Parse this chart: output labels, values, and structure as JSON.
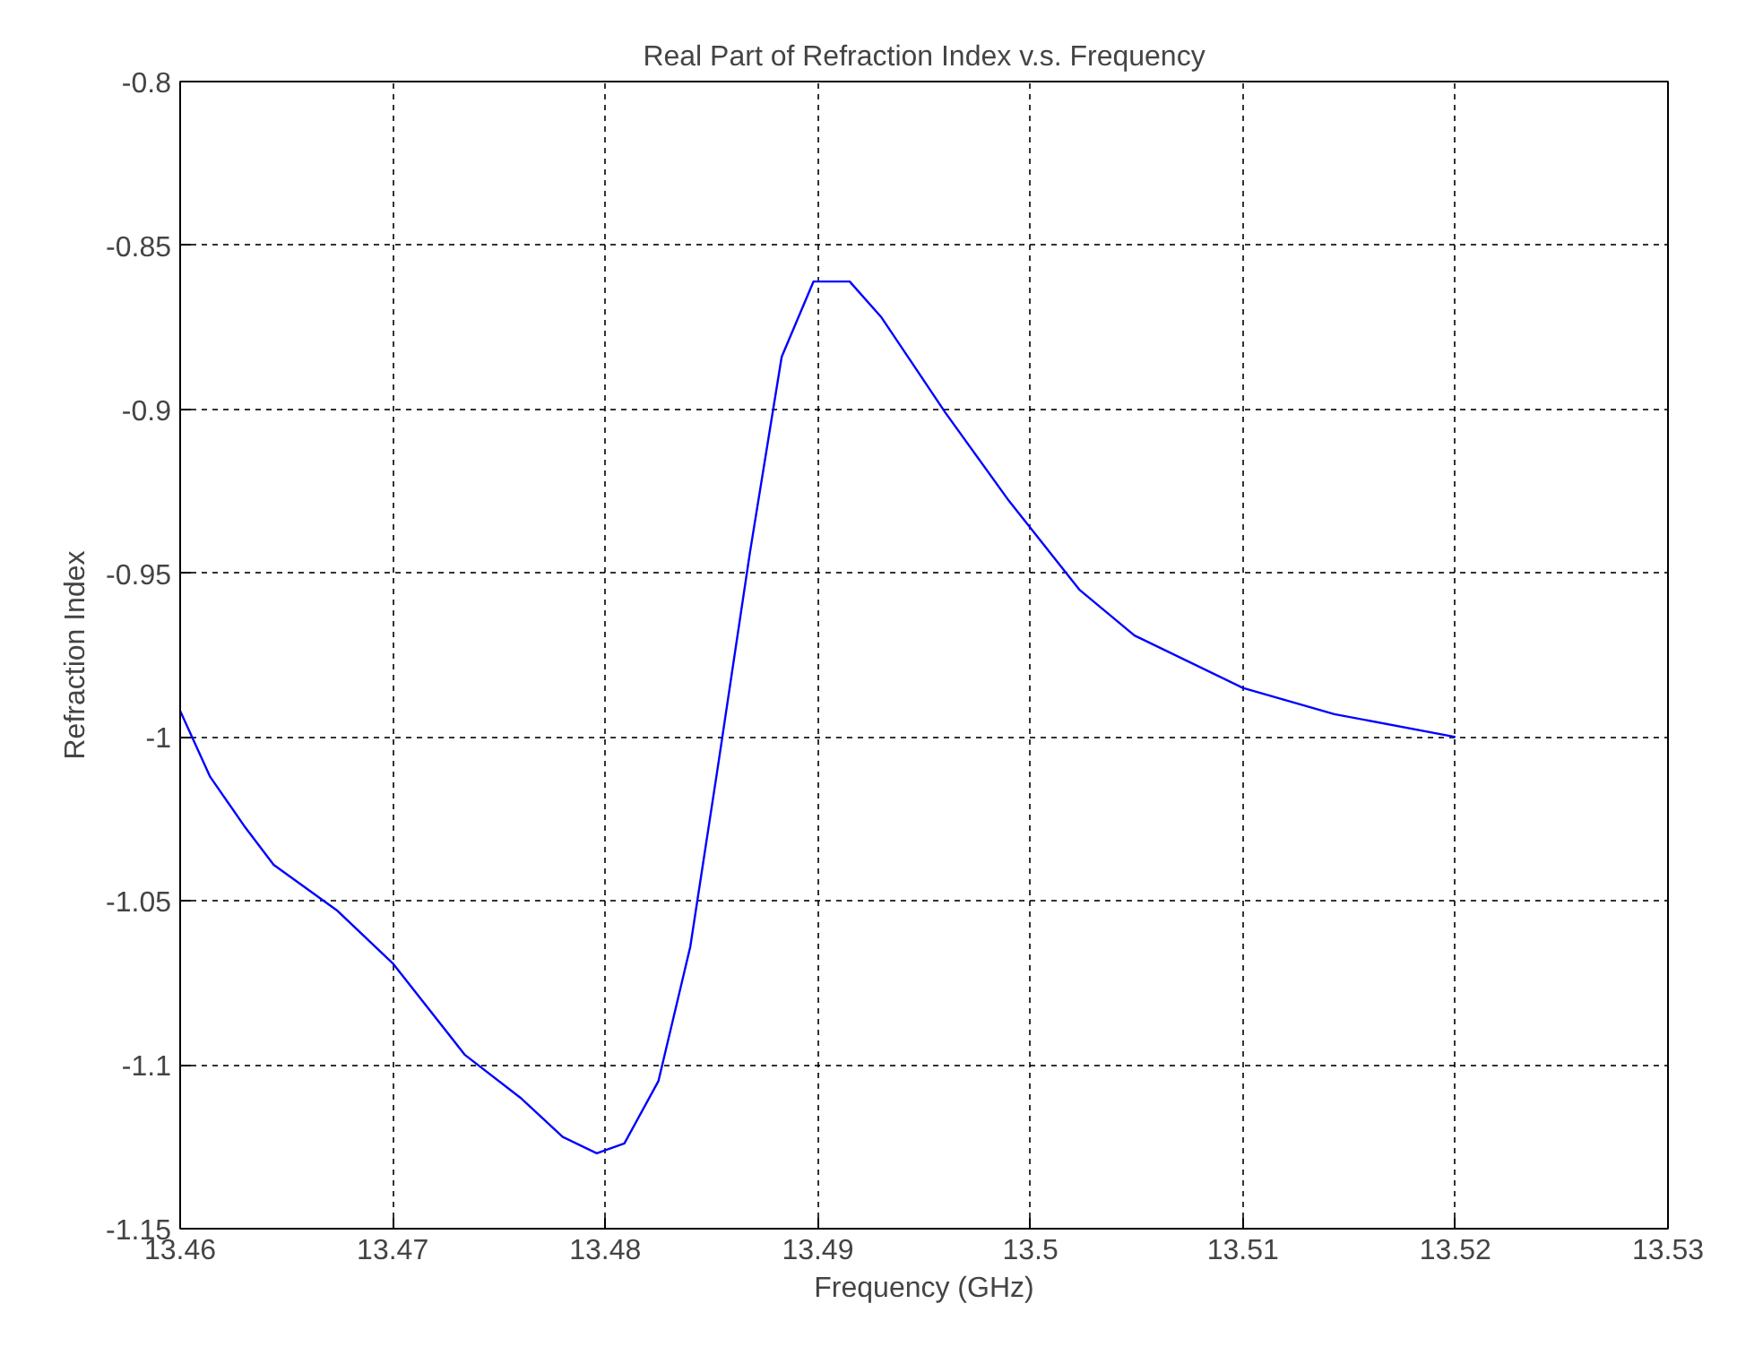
{
  "chart_data": {
    "type": "line",
    "title": "Real Part of Refraction Index v.s. Frequency",
    "xlabel": "Frequency (GHz)",
    "ylabel": "Refraction Index",
    "x": [
      13.46,
      13.4614,
      13.463,
      13.4644,
      13.4674,
      13.47,
      13.4734,
      13.476,
      13.478,
      13.4796,
      13.4809,
      13.4825,
      13.484,
      13.4853,
      13.4868,
      13.4883,
      13.4898,
      13.4915,
      13.493,
      13.496,
      13.499,
      13.5023,
      13.5049,
      13.51,
      13.5143,
      13.52
    ],
    "series": [
      {
        "color": "#0000ff",
        "values": [
          -0.992,
          -1.012,
          -1.027,
          -1.039,
          -1.053,
          -1.069,
          -1.097,
          -1.11,
          -1.122,
          -1.127,
          -1.124,
          -1.105,
          -1.064,
          -1.009,
          -0.944,
          -0.884,
          -0.861,
          -0.861,
          -0.872,
          -0.901,
          -0.928,
          -0.955,
          -0.969,
          -0.985,
          -0.993,
          -1.0
        ]
      }
    ],
    "xlim": [
      13.46,
      13.53
    ],
    "ylim": [
      -1.15,
      -0.8
    ],
    "xticks": [
      13.46,
      13.47,
      13.48,
      13.49,
      13.5,
      13.51,
      13.52,
      13.53
    ],
    "yticks": [
      -1.15,
      -1.1,
      -1.05,
      -1,
      -0.95,
      -0.9,
      -0.85,
      -0.8
    ],
    "grid": true,
    "line_style": "solid"
  }
}
